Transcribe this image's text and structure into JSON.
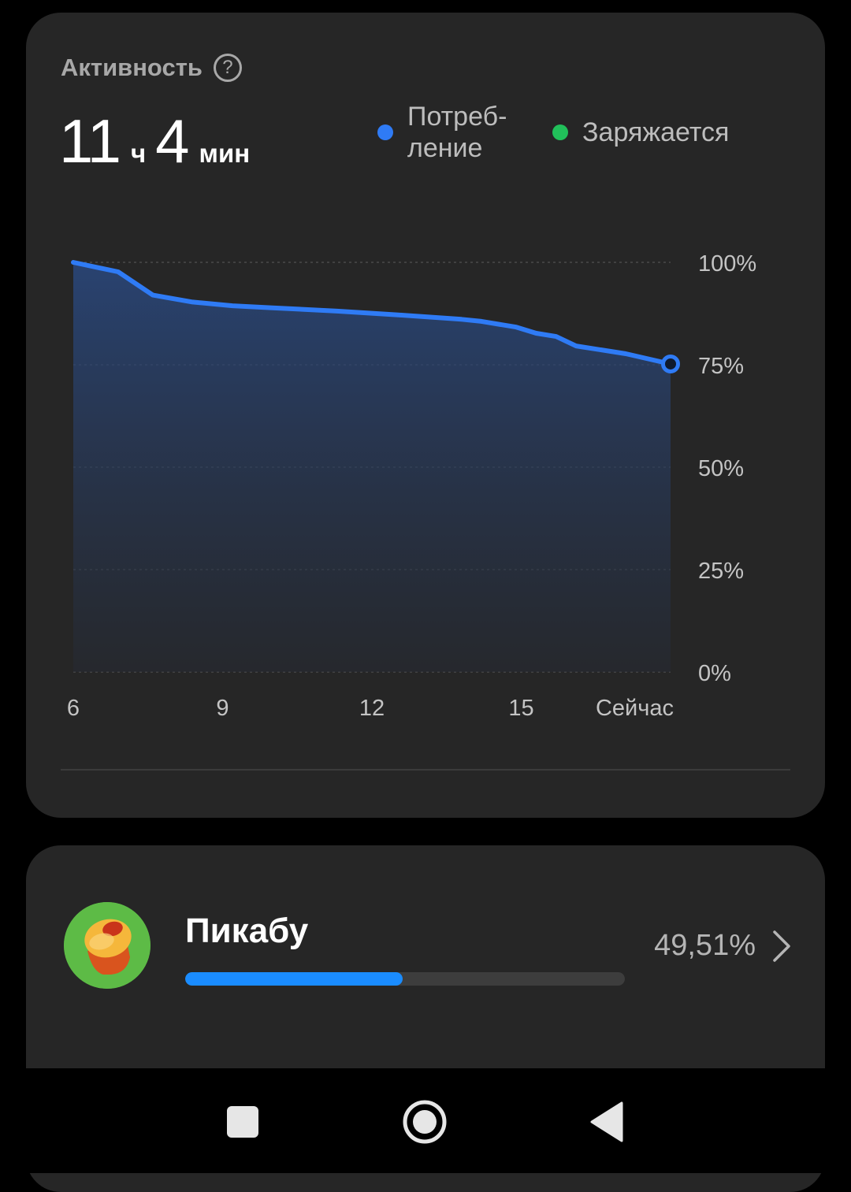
{
  "activity": {
    "title": "Активность",
    "help_icon": "help-circle-icon",
    "help_glyph": "?",
    "duration": {
      "hours": "11",
      "hours_unit": "ч",
      "minutes": "4",
      "minutes_unit": "мин"
    },
    "legend": [
      {
        "label": "Потреб-\nление",
        "color": "#2f7bf5"
      },
      {
        "label": "Заряжается",
        "color": "#21c05a"
      }
    ]
  },
  "chart_data": {
    "type": "area",
    "y_ticks": [
      "100%",
      "75%",
      "50%",
      "25%",
      "0%"
    ],
    "x_ticks": [
      "6",
      "9",
      "12",
      "15",
      "Сейчас"
    ],
    "ylim": [
      0,
      100
    ],
    "xlim": [
      6,
      18
    ],
    "line_color": "#2f7bf5",
    "series": [
      {
        "x": [
          6.0,
          6.9,
          7.6,
          8.4,
          9.2,
          10.0,
          11.3,
          12.5,
          13.8,
          14.2,
          14.9,
          15.3,
          15.7,
          16.1,
          17.1,
          18.0
        ],
        "values": [
          100,
          97.7,
          92,
          90.3,
          89.4,
          88.9,
          88.1,
          87.2,
          86.1,
          85.6,
          84.2,
          82.7,
          81.9,
          79.6,
          77.7,
          75.2
        ]
      }
    ]
  },
  "app": {
    "name": "Пикабу",
    "percent_label": "49,51%",
    "usage_fraction": 0.4951,
    "icon": "pikabu-app-icon"
  },
  "navbar": {
    "recents_icon": "square-icon",
    "home_icon": "circle-home-icon",
    "back_icon": "triangle-back-icon"
  }
}
